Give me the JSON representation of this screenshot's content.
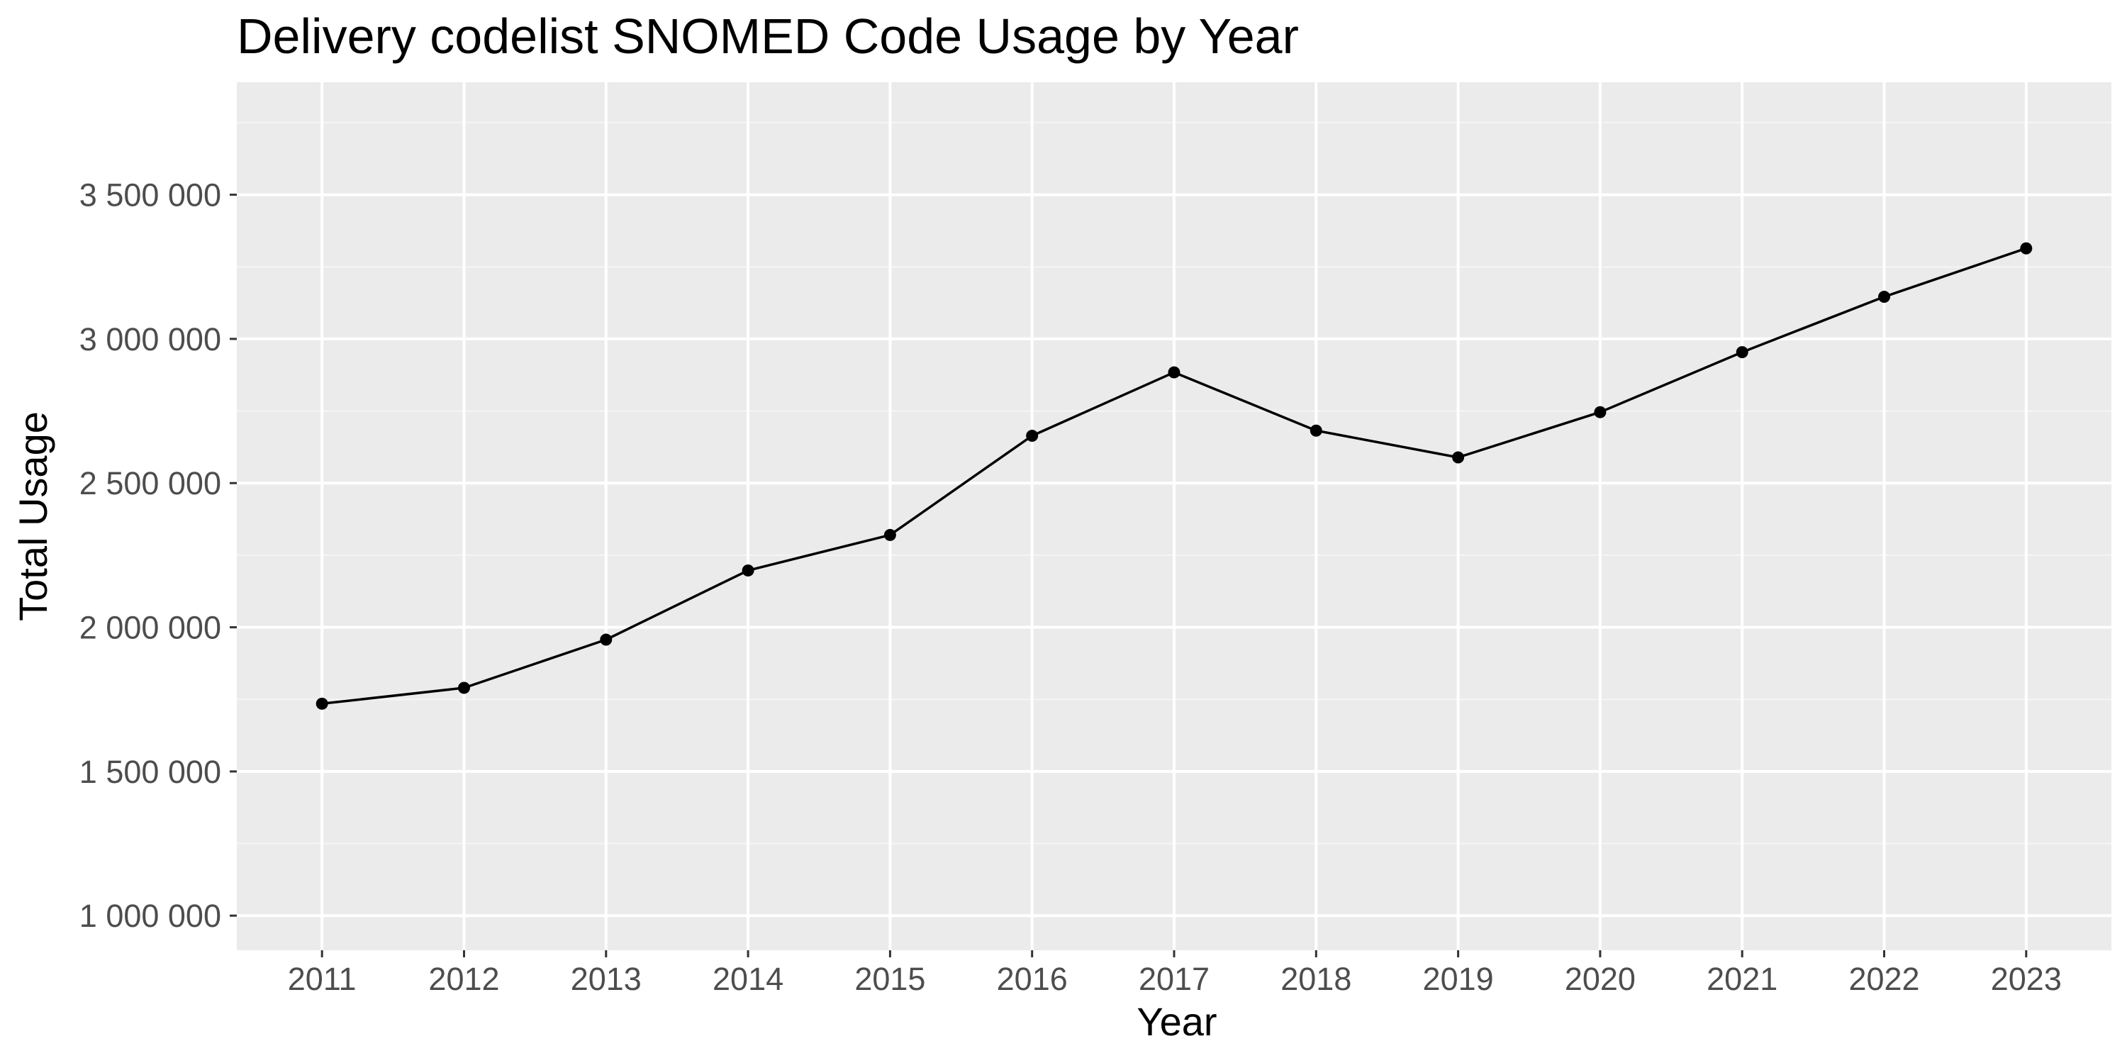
{
  "chart_data": {
    "type": "line",
    "title": "Delivery codelist SNOMED Code Usage by Year",
    "xlabel": "Year",
    "ylabel": "Total Usage",
    "x": [
      2011,
      2012,
      2013,
      2014,
      2015,
      2016,
      2017,
      2018,
      2019,
      2020,
      2021,
      2022,
      2023
    ],
    "series": [
      {
        "values": [
          1735000,
          1790000,
          1957000,
          2197000,
          2320000,
          2664000,
          2884000,
          2682000,
          2589000,
          2746000,
          2954000,
          3146000,
          3314000
        ],
        "color": "#000000"
      }
    ],
    "xlim": [
      2010.4,
      2023.6
    ],
    "ylim": [
      880000,
      3890000
    ],
    "y_ticks": [
      1000000,
      1500000,
      2000000,
      2500000,
      3000000,
      3500000
    ],
    "y_tick_labels": [
      "1 000 000",
      "1 500 000",
      "2 000 000",
      "2 500 000",
      "3 000 000",
      "3 500 000"
    ],
    "x_tick_labels": [
      "2011",
      "2012",
      "2013",
      "2014",
      "2015",
      "2016",
      "2017",
      "2018",
      "2019",
      "2020",
      "2021",
      "2022",
      "2023"
    ],
    "grid": true,
    "legend": "none",
    "colors": {
      "panel_background": "#ebebeb",
      "grid_major": "#ffffff",
      "grid_minor": "#f5f5f5",
      "line": "#000000",
      "tick_text": "#4d4d4d",
      "tick_mark": "#333333"
    }
  }
}
